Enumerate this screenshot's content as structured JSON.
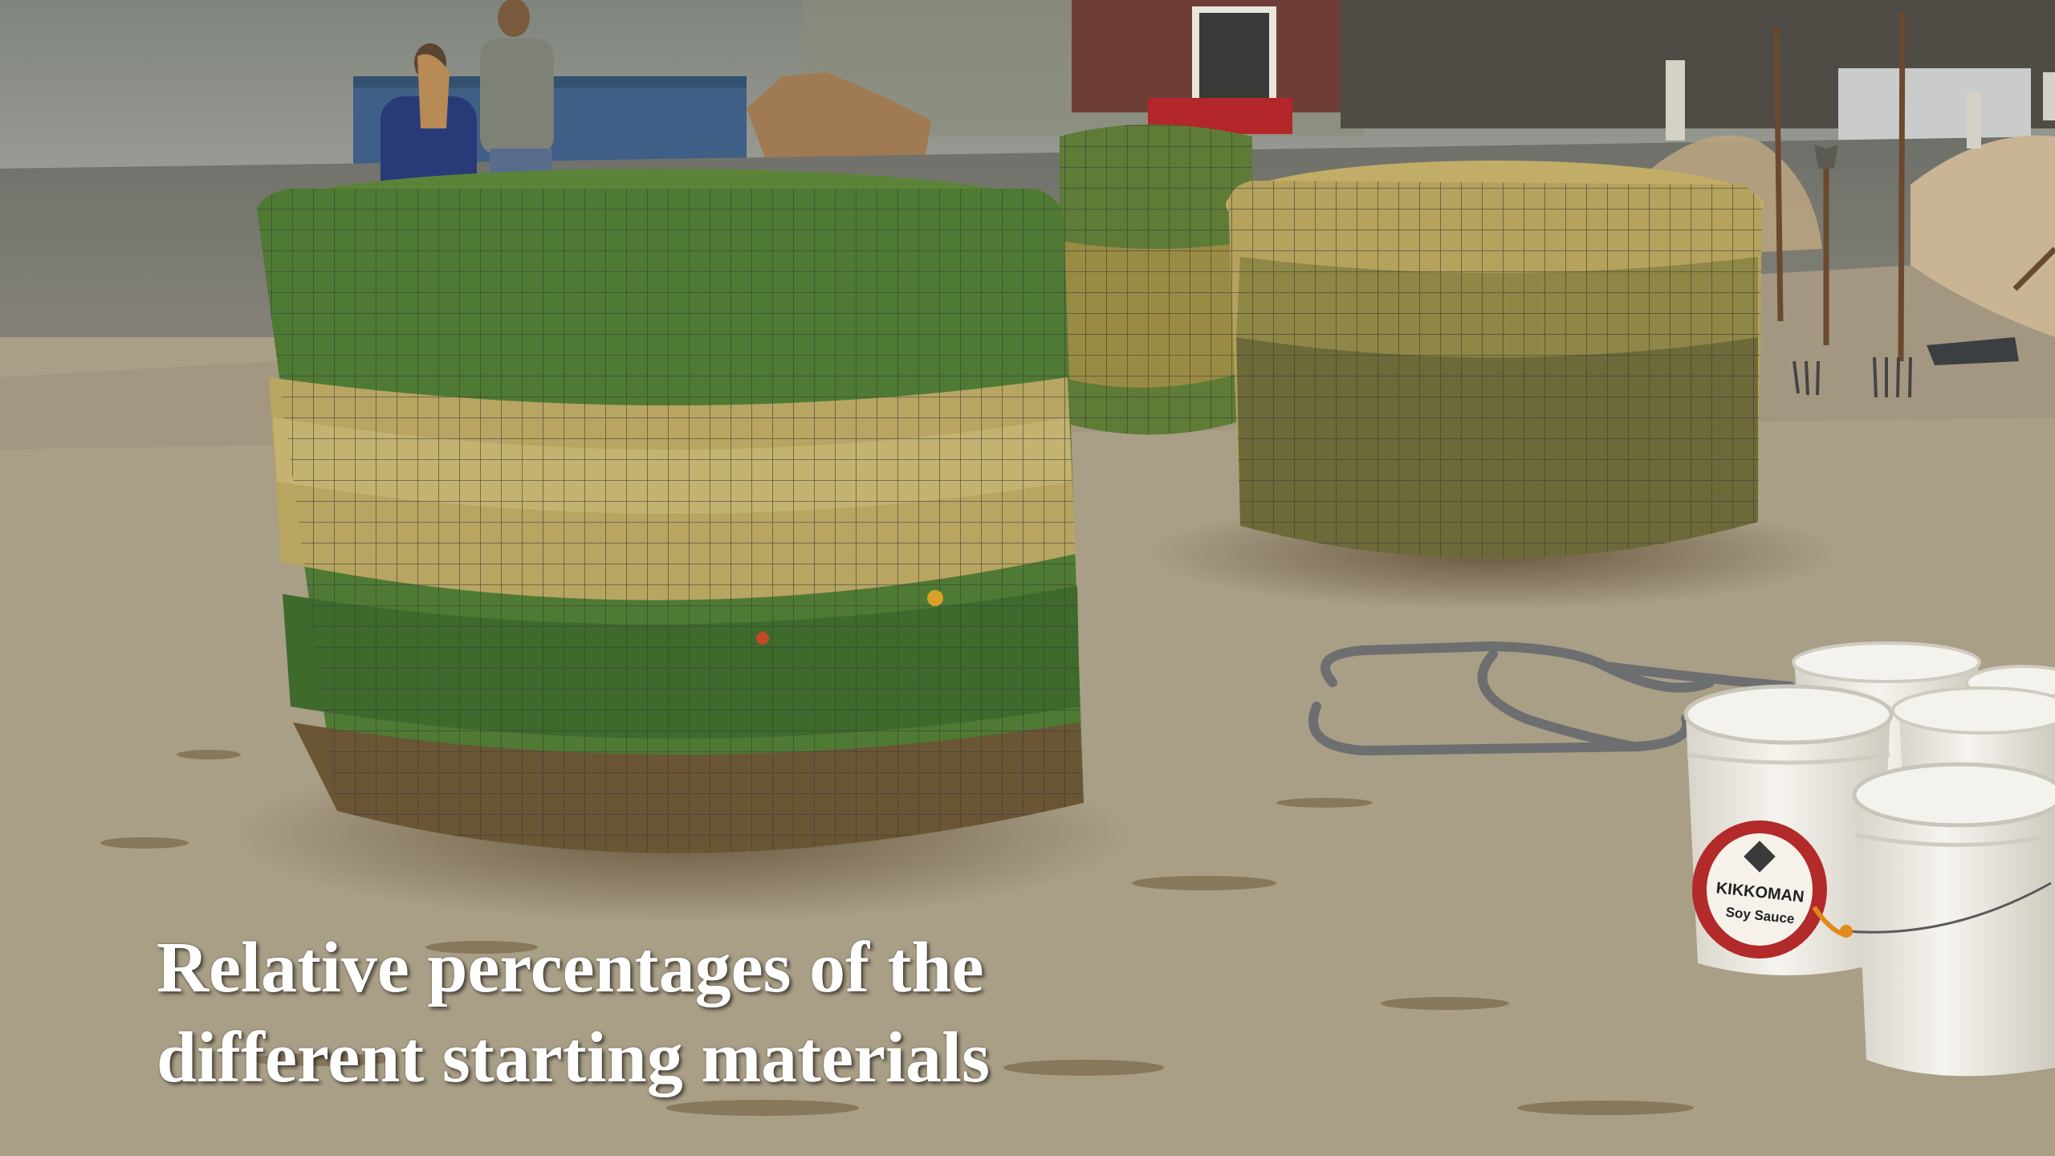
{
  "slide": {
    "caption_lines": [
      "Relative percentages of the",
      "different starting materials"
    ]
  },
  "scene": {
    "bucket_brand": "KIKKOMAN",
    "bucket_product": "Soy Sauce",
    "colors": {
      "ground": "#a99e86",
      "fog": "#8f938c",
      "greens": "#4f7a34",
      "straw": "#b8a562",
      "barn": "#6e3e36",
      "dumpster": "#3f5f86",
      "bucket": "#f1efe8",
      "bucket_logo": "#b32a2a"
    }
  }
}
